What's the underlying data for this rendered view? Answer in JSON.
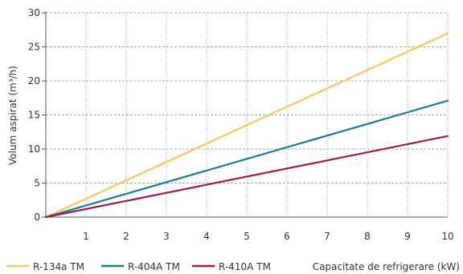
{
  "chart_data": {
    "type": "line",
    "title": "",
    "xlabel": "Capacitate de refrigerare (kW)",
    "ylabel": "Volum aspirat (m³/h)",
    "xlim": [
      0,
      10
    ],
    "ylim": [
      0,
      30
    ],
    "x_ticks": [
      1,
      2,
      3,
      4,
      5,
      6,
      7,
      8,
      9,
      10
    ],
    "x_tick_labels": [
      "1",
      "2",
      "3",
      "4",
      "5",
      "6",
      "7",
      "8",
      "9",
      "10"
    ],
    "y_ticks": [
      0,
      5,
      10,
      15,
      20,
      25,
      30
    ],
    "y_tick_labels": [
      "0",
      "5",
      "10",
      "15",
      "20",
      "25",
      "30"
    ],
    "grid": {
      "vertical": "dotted",
      "horizontal": "dashed"
    },
    "legend_position": "bottom-left",
    "series": [
      {
        "name": "R-134a TM",
        "color": "#f9c75e",
        "x": [
          0,
          10
        ],
        "y": [
          0,
          27
        ]
      },
      {
        "name": "R-404A TM",
        "color": "#1a7a97",
        "x": [
          0,
          10
        ],
        "y": [
          0,
          17.1
        ]
      },
      {
        "name": "R-410A TM",
        "color": "#9b1b4c",
        "x": [
          0,
          10
        ],
        "y": [
          0,
          11.9
        ]
      }
    ]
  }
}
